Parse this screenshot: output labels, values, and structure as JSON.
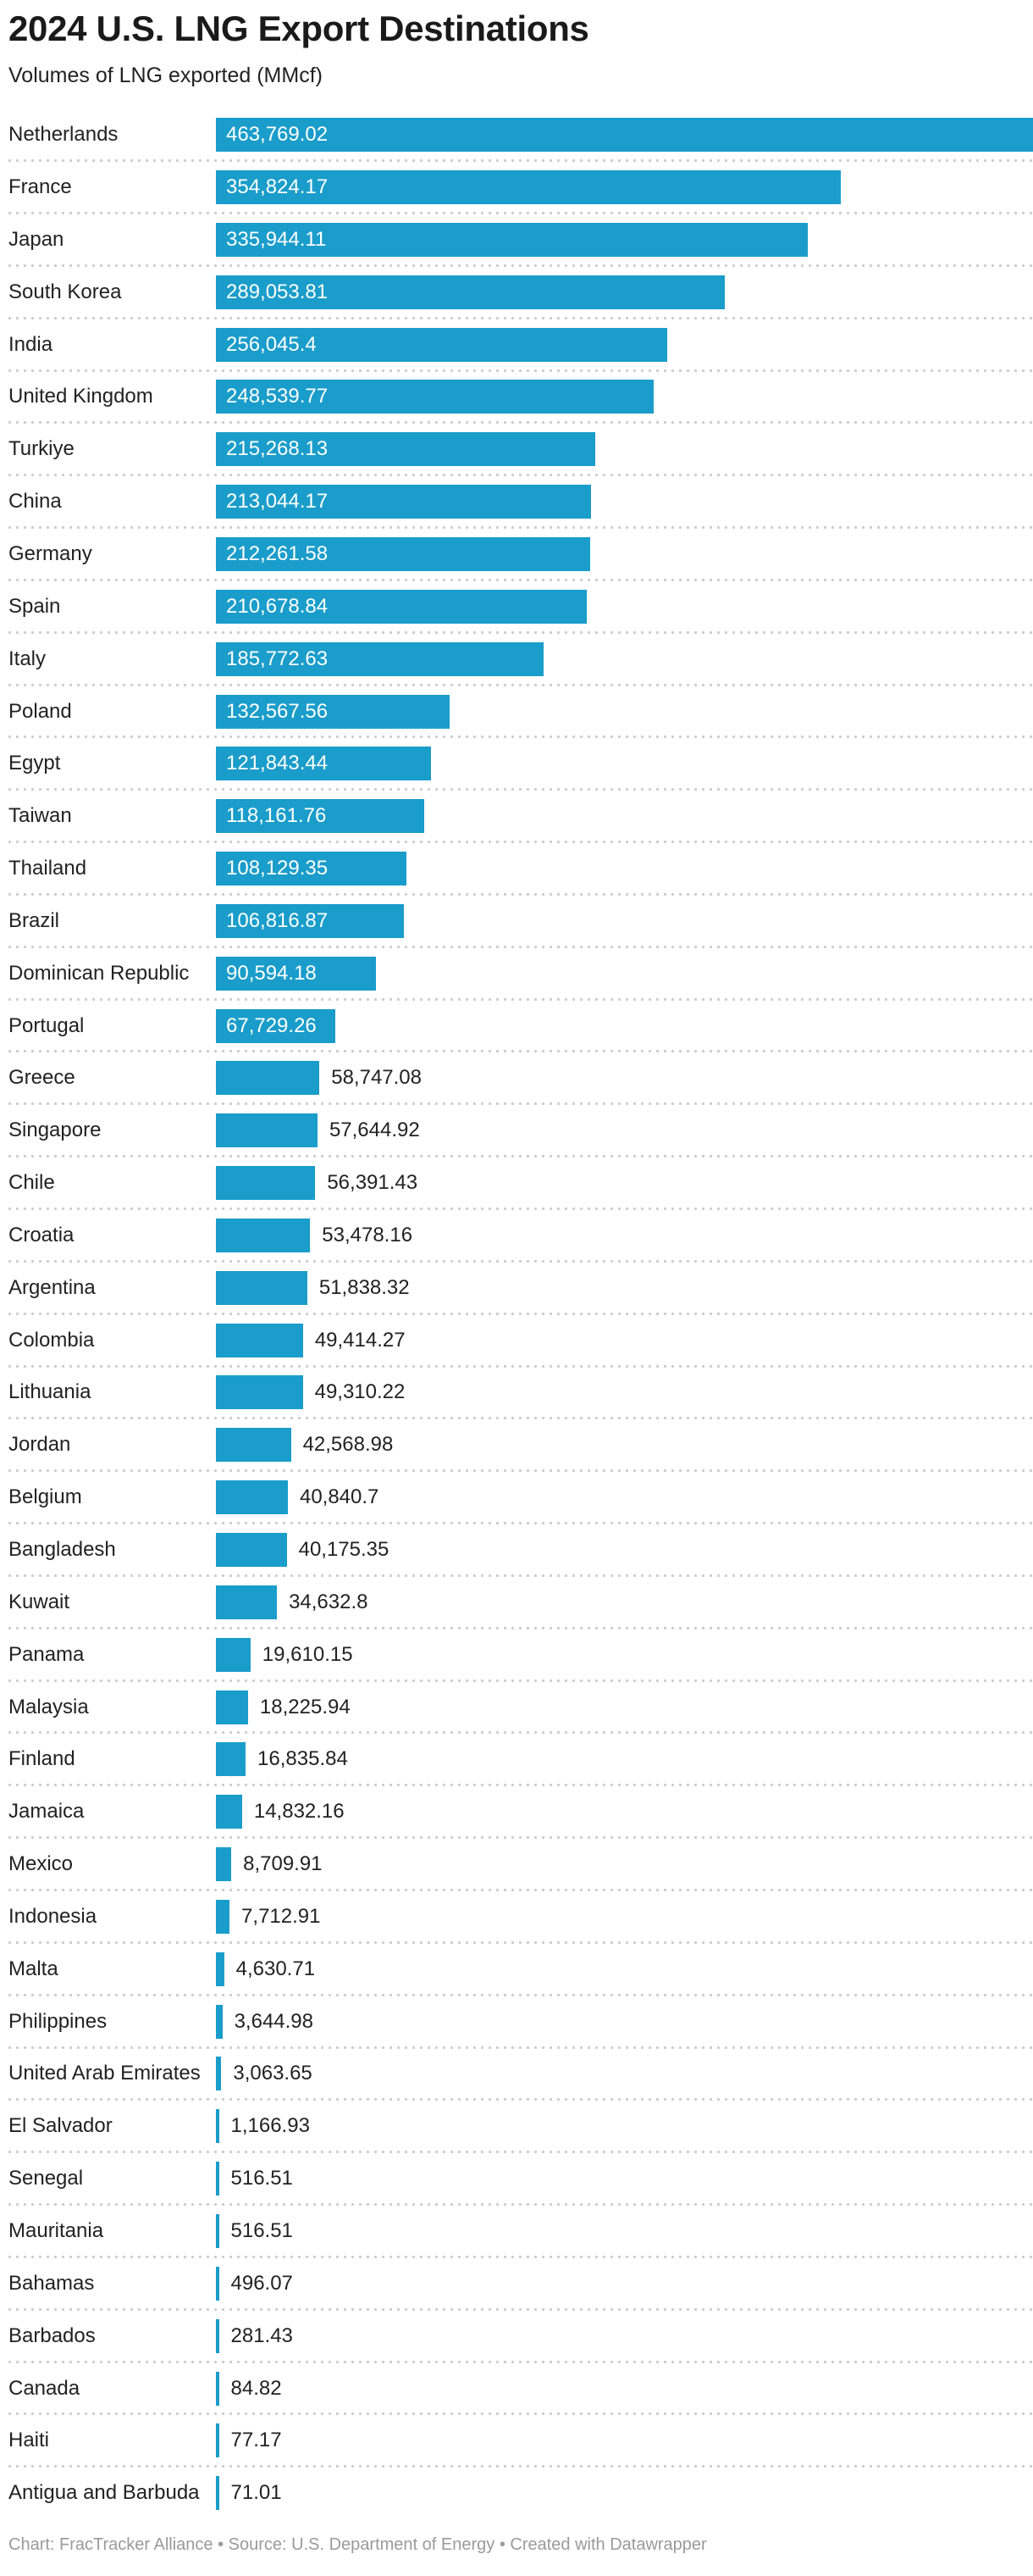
{
  "chart_data": {
    "type": "bar",
    "orientation": "horizontal",
    "title": "2024 U.S. LNG Export Destinations",
    "subtitle": "Volumes of LNG exported (MMcf)",
    "unit": "MMcf",
    "xlim": [
      0,
      463769.02
    ],
    "grid": false,
    "legend": "none",
    "categories": [
      "Netherlands",
      "France",
      "Japan",
      "South Korea",
      "India",
      "United Kingdom",
      "Turkiye",
      "China",
      "Germany",
      "Spain",
      "Italy",
      "Poland",
      "Egypt",
      "Taiwan",
      "Thailand",
      "Brazil",
      "Dominican Republic",
      "Portugal",
      "Greece",
      "Singapore",
      "Chile",
      "Croatia",
      "Argentina",
      "Colombia",
      "Lithuania",
      "Jordan",
      "Belgium",
      "Bangladesh",
      "Kuwait",
      "Panama",
      "Malaysia",
      "Finland",
      "Jamaica",
      "Mexico",
      "Indonesia",
      "Malta",
      "Philippines",
      "United Arab Emirates",
      "El Salvador",
      "Senegal",
      "Mauritania",
      "Bahamas",
      "Barbados",
      "Canada",
      "Haiti",
      "Antigua and Barbuda"
    ],
    "values": [
      463769.02,
      354824.17,
      335944.11,
      289053.81,
      256045.4,
      248539.77,
      215268.13,
      213044.17,
      212261.58,
      210678.84,
      185772.63,
      132567.56,
      121843.44,
      118161.76,
      108129.35,
      106816.87,
      90594.18,
      67729.26,
      58747.08,
      57644.92,
      56391.43,
      53478.16,
      51838.32,
      49414.27,
      49310.22,
      42568.98,
      40840.7,
      40175.35,
      34632.8,
      19610.15,
      18225.94,
      16835.84,
      14832.16,
      8709.91,
      7712.91,
      4630.71,
      3644.98,
      3063.65,
      1166.93,
      516.51,
      516.51,
      496.07,
      281.43,
      84.82,
      77.17,
      71.01
    ],
    "value_labels": [
      "463,769.02",
      "354,824.17",
      "335,944.11",
      "289,053.81",
      "256,045.4",
      "248,539.77",
      "215,268.13",
      "213,044.17",
      "212,261.58",
      "210,678.84",
      "185,772.63",
      "132,567.56",
      "121,843.44",
      "118,161.76",
      "108,129.35",
      "106,816.87",
      "90,594.18",
      "67,729.26",
      "58,747.08",
      "57,644.92",
      "56,391.43",
      "53,478.16",
      "51,838.32",
      "49,414.27",
      "49,310.22",
      "42,568.98",
      "40,840.7",
      "40,175.35",
      "34,632.8",
      "19,610.15",
      "18,225.94",
      "16,835.84",
      "14,832.16",
      "8,709.91",
      "7,712.91",
      "4,630.71",
      "3,644.98",
      "3,063.65",
      "1,166.93",
      "516.51",
      "516.51",
      "496.07",
      "281.43",
      "84.82",
      "77.17",
      "71.01"
    ]
  },
  "footer": {
    "text": "Chart: FracTracker Alliance • Source: U.S. Department of Energy • Created with Datawrapper"
  },
  "colors": {
    "bar": "#1A9DCA",
    "title_text": "#1A1A1A",
    "body_text": "#222222",
    "value_inside_text": "#FFFFFF",
    "separator": "#D0D0D0",
    "footer_text": "#9A9A9A",
    "background": "#FFFFFF"
  }
}
